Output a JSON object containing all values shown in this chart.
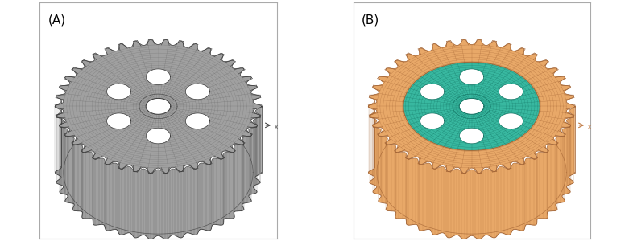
{
  "figure_width": 7.86,
  "figure_height": 3.0,
  "dpi": 100,
  "background_color": "#ffffff",
  "panel_A_label": "(A)",
  "panel_B_label": "(B)",
  "label_fontsize": 11,
  "label_color": "#000000",
  "panel_border_color": "#aaaaaa",
  "panel_border_linewidth": 0.8,
  "gear_gray_light": "#c8c8c8",
  "gear_gray_mid": "#a0a0a0",
  "gear_gray_dark": "#707070",
  "gear_gray_edge": "#383838",
  "gear_gray_mesh": "#606060",
  "gear_orange_light": "#f0c090",
  "gear_orange_mid": "#e8a868",
  "gear_orange_dark": "#c07840",
  "gear_orange_edge": "#a06030",
  "gear_teal_light": "#60d0b8",
  "gear_teal_mid": "#38b8a0",
  "gear_teal_dark": "#209080",
  "gear_teal_edge": "#107060",
  "num_teeth": 42,
  "num_holes": 6,
  "axis_label_color_A": "#444444",
  "axis_label_color_B": "#c07840"
}
